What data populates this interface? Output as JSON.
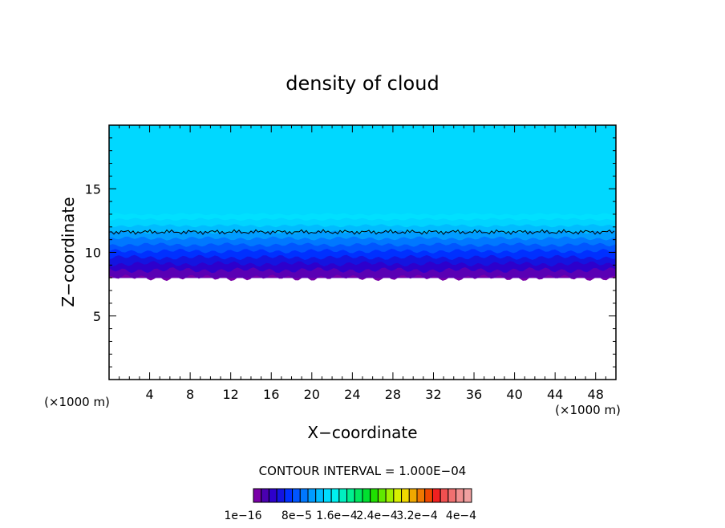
{
  "chart_data": {
    "type": "heatmap",
    "title": "density of cloud",
    "xlabel": "X−coordinate",
    "ylabel": "Z−coordinate",
    "x_unit": "(×1000 m)",
    "x_unit_right": "(×1000 m)",
    "xlim": [
      0,
      50
    ],
    "ylim": [
      0,
      20
    ],
    "x_ticks": [
      "4",
      "8",
      "12",
      "16",
      "20",
      "24",
      "28",
      "32",
      "36",
      "40",
      "44",
      "48"
    ],
    "y_ticks": [
      "5",
      "10",
      "15"
    ],
    "contour_interval": "CONTOUR INTERVAL = 1.000E−04",
    "colorbar_labels": [
      "1e−16",
      "8e−5",
      "1.6e−4",
      "2.4e−4",
      "3.2e−4",
      "4e−4"
    ],
    "colorbar_colors": [
      "#7a00a8",
      "#4a00b0",
      "#2d00cc",
      "#1414e0",
      "#0030ff",
      "#0055ff",
      "#0078ff",
      "#009cff",
      "#00bcff",
      "#00dcff",
      "#00f0f0",
      "#00f0c0",
      "#00f090",
      "#00e860",
      "#00e030",
      "#20e000",
      "#60e800",
      "#a0f000",
      "#d8f000",
      "#f0d800",
      "#f0a800",
      "#f07800",
      "#f04800",
      "#f02020",
      "#f05050",
      "#f07070",
      "#f09090",
      "#f0a0a0"
    ],
    "cloud_layer": {
      "base_z": 8.0,
      "top_z": 20.0,
      "contour_line_z": 11.6,
      "profile": [
        {
          "z": 8.0,
          "color": "#7a00a8"
        },
        {
          "z": 8.6,
          "color": "#5a00b4"
        },
        {
          "z": 9.1,
          "color": "#2d00cc"
        },
        {
          "z": 9.6,
          "color": "#1414e0"
        },
        {
          "z": 10.1,
          "color": "#0030ff"
        },
        {
          "z": 10.6,
          "color": "#0055ff"
        },
        {
          "z": 11.1,
          "color": "#0078ff"
        },
        {
          "z": 11.6,
          "color": "#009cff"
        },
        {
          "z": 12.1,
          "color": "#00bcff"
        },
        {
          "z": 12.6,
          "color": "#00d4ff"
        },
        {
          "z": 13.0,
          "color": "#00e0ff"
        }
      ]
    }
  }
}
